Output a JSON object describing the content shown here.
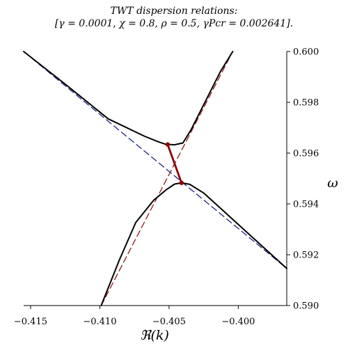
{
  "chart_data": {
    "type": "line",
    "title": "TWT dispersion relations:",
    "subtitle": "[γ = 0.0001, χ = 0.8, ρ = 0.5, γPcr = 0.002641].",
    "xlabel": "ℜ(k)",
    "ylabel": "ω",
    "xlim": [
      -0.4155,
      -0.3965
    ],
    "ylim": [
      0.59,
      0.6
    ],
    "x_ticks": [
      -0.415,
      -0.41,
      -0.405,
      -0.4
    ],
    "x_tick_labels": [
      "−0.415",
      "−0.410",
      "−0.405",
      "−0.400"
    ],
    "y_ticks": [
      0.59,
      0.592,
      0.594,
      0.596,
      0.598,
      0.6
    ],
    "y_tick_labels": [
      "0.590",
      "0.592",
      "0.594",
      "0.596",
      "0.598",
      "0.600"
    ],
    "grid": false,
    "colors": {
      "branch": "#000000",
      "asymptote_red": "#8b1a1a",
      "asymptote_blue": "#1a237e",
      "connector": "#8b0000"
    },
    "series": [
      {
        "style": "solid",
        "color": "#000000",
        "x": [
          -0.4155,
          -0.4124,
          -0.4094,
          -0.4068,
          -0.4058,
          -0.4052,
          -0.405,
          -0.4046,
          -0.404,
          -0.4034,
          -0.4025,
          -0.4013,
          -0.4004
        ],
        "y": [
          0.6,
          0.59867,
          0.59735,
          0.59667,
          0.59645,
          0.59634,
          0.59634,
          0.59633,
          0.5964,
          0.59693,
          0.5979,
          0.5992,
          0.6
        ]
      },
      {
        "style": "solid",
        "color": "#000000",
        "x": [
          -0.4099,
          -0.4086,
          -0.4074,
          -0.4061,
          -0.4052,
          -0.4046,
          -0.4041,
          -0.4035,
          -0.4025,
          -0.4005,
          -0.3985,
          -0.3965
        ],
        "y": [
          0.59,
          0.59178,
          0.59327,
          0.59415,
          0.59456,
          0.59478,
          0.59483,
          0.59477,
          0.59443,
          0.59344,
          0.59245,
          0.59146
        ]
      },
      {
        "style": "dashed",
        "color": "#8b1a1a",
        "x": [
          -0.4099,
          -0.4004
        ],
        "y": [
          0.59,
          0.6
        ]
      },
      {
        "style": "dashed",
        "color": "#1a237e",
        "x": [
          -0.4155,
          -0.3965
        ],
        "y": [
          0.6,
          0.59146
        ]
      }
    ],
    "connector": {
      "color": "#8b0000",
      "points": [
        {
          "x": -0.4051,
          "y": 0.59634
        },
        {
          "x": -0.4041,
          "y": 0.59483
        }
      ]
    }
  }
}
